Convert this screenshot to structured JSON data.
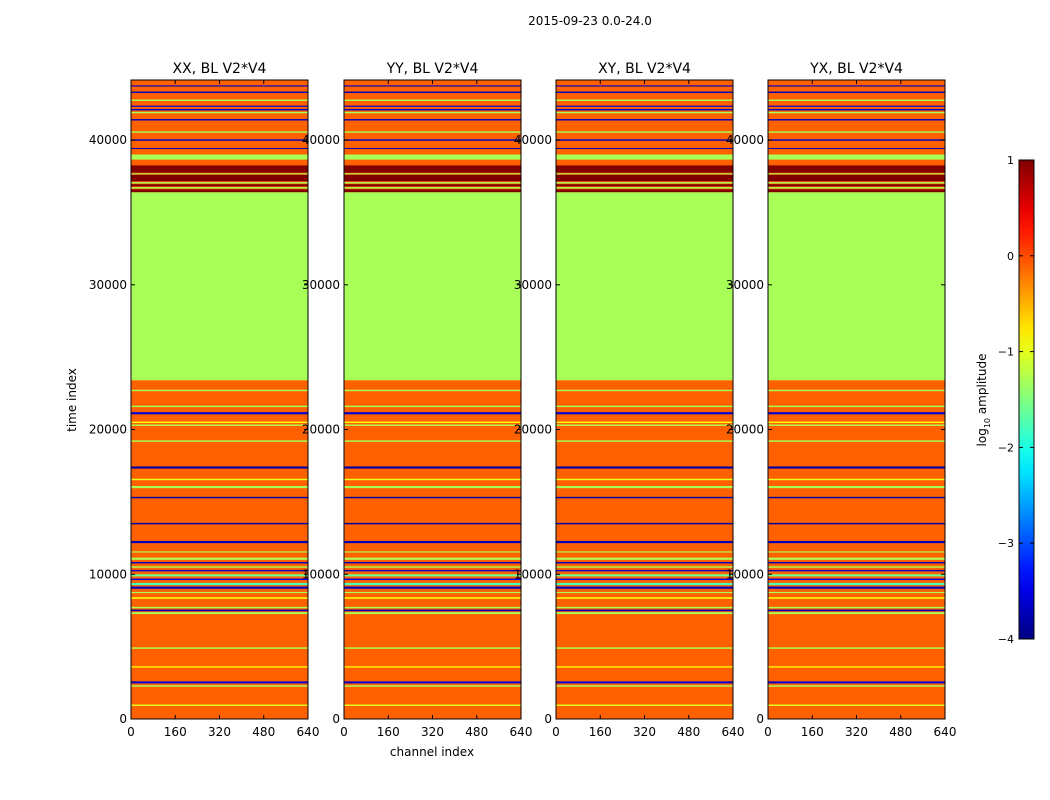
{
  "chart_data": {
    "type": "heatmap",
    "suptitle": "2015-09-23 0.0-24.0",
    "panels": [
      {
        "title": "XX, BL V2*V4"
      },
      {
        "title": "YY, BL V2*V4"
      },
      {
        "title": "XY, BL V2*V4"
      },
      {
        "title": "YX, BL V2*V4"
      }
    ],
    "xlabel": "channel index",
    "ylabel": "time index",
    "xlim": [
      0,
      640
    ],
    "ylim": [
      0,
      44150
    ],
    "xticks": [
      "0",
      "160",
      "320",
      "480",
      "640"
    ],
    "xtick_values": [
      0,
      160,
      320,
      480,
      640
    ],
    "yticks": [
      "0",
      "10000",
      "20000",
      "30000",
      "40000"
    ],
    "ytick_values": [
      0,
      10000,
      20000,
      30000,
      40000
    ],
    "colorbar": {
      "label": "log10 amplitude",
      "label_base": "log",
      "label_sub": "10",
      "label_rest": " amplitude",
      "range": [
        -4,
        1
      ],
      "ticks": [
        "1",
        "0",
        "−1",
        "−2",
        "−3",
        "−4"
      ],
      "tick_values": [
        1,
        0,
        -1,
        -2,
        -3,
        -4
      ],
      "colormap": "jet"
    },
    "background_value": -0.1,
    "bands": [
      {
        "t0": 900,
        "t1": 1000,
        "v": -1.0
      },
      {
        "t0": 2230,
        "t1": 2330,
        "v": -1.3
      },
      {
        "t0": 2460,
        "t1": 2600,
        "v": -3.6
      },
      {
        "t0": 3550,
        "t1": 3650,
        "v": -0.8
      },
      {
        "t0": 4850,
        "t1": 4950,
        "v": -1.3
      },
      {
        "t0": 7250,
        "t1": 7380,
        "v": -1.3
      },
      {
        "t0": 7450,
        "t1": 7560,
        "v": -3.7
      },
      {
        "t0": 7650,
        "t1": 7750,
        "v": -1.3
      },
      {
        "t0": 8300,
        "t1": 8420,
        "v": -0.8
      },
      {
        "t0": 8700,
        "t1": 8780,
        "v": -1.3
      },
      {
        "t0": 9000,
        "t1": 9150,
        "v": -3.7
      },
      {
        "t0": 9250,
        "t1": 9400,
        "v": -1.8
      },
      {
        "t0": 9600,
        "t1": 9700,
        "v": -3.5
      },
      {
        "t0": 9850,
        "t1": 10000,
        "v": -1.6
      },
      {
        "t0": 10200,
        "t1": 10300,
        "v": -3.7
      },
      {
        "t0": 10450,
        "t1": 10550,
        "v": -1.3
      },
      {
        "t0": 10750,
        "t1": 10850,
        "v": -3.7
      },
      {
        "t0": 11000,
        "t1": 11150,
        "v": -1.3
      },
      {
        "t0": 11500,
        "t1": 11580,
        "v": -1.3
      },
      {
        "t0": 12150,
        "t1": 12300,
        "v": -3.7
      },
      {
        "t0": 13450,
        "t1": 13550,
        "v": -3.8
      },
      {
        "t0": 15250,
        "t1": 15350,
        "v": -3.8
      },
      {
        "t0": 15950,
        "t1": 16100,
        "v": -1.3
      },
      {
        "t0": 16500,
        "t1": 16600,
        "v": -1.0
      },
      {
        "t0": 17300,
        "t1": 17450,
        "v": -3.8
      },
      {
        "t0": 19150,
        "t1": 19250,
        "v": -1.3
      },
      {
        "t0": 20250,
        "t1": 20350,
        "v": -1.3
      },
      {
        "t0": 20450,
        "t1": 20550,
        "v": -0.9
      },
      {
        "t0": 21050,
        "t1": 21200,
        "v": -3.6
      },
      {
        "t0": 21550,
        "t1": 21650,
        "v": -1.3
      },
      {
        "t0": 22650,
        "t1": 22750,
        "v": -1.3
      },
      {
        "t0": 23400,
        "t1": 36400,
        "v": -1.3
      },
      {
        "t0": 36400,
        "t1": 36600,
        "v": 1.0
      },
      {
        "t0": 36650,
        "t1": 36750,
        "v": -1.3
      },
      {
        "t0": 36800,
        "t1": 36950,
        "v": 1.0
      },
      {
        "t0": 37000,
        "t1": 37100,
        "v": -1.3
      },
      {
        "t0": 37150,
        "t1": 37600,
        "v": 1.0
      },
      {
        "t0": 37650,
        "t1": 37700,
        "v": -1.3
      },
      {
        "t0": 37750,
        "t1": 38250,
        "v": 1.0
      },
      {
        "t0": 38650,
        "t1": 39000,
        "v": -1.3
      },
      {
        "t0": 39400,
        "t1": 39450,
        "v": -3.7
      },
      {
        "t0": 39950,
        "t1": 40050,
        "v": -3.7
      },
      {
        "t0": 40500,
        "t1": 40600,
        "v": -1.3
      },
      {
        "t0": 41350,
        "t1": 41450,
        "v": -3.7
      },
      {
        "t0": 41850,
        "t1": 41950,
        "v": -1.3
      },
      {
        "t0": 42050,
        "t1": 42150,
        "v": -3.6
      },
      {
        "t0": 42300,
        "t1": 42380,
        "v": -3.6
      },
      {
        "t0": 42700,
        "t1": 42800,
        "v": -1.3
      },
      {
        "t0": 43250,
        "t1": 43350,
        "v": -3.7
      },
      {
        "t0": 43700,
        "t1": 43780,
        "v": -3.7
      }
    ]
  }
}
